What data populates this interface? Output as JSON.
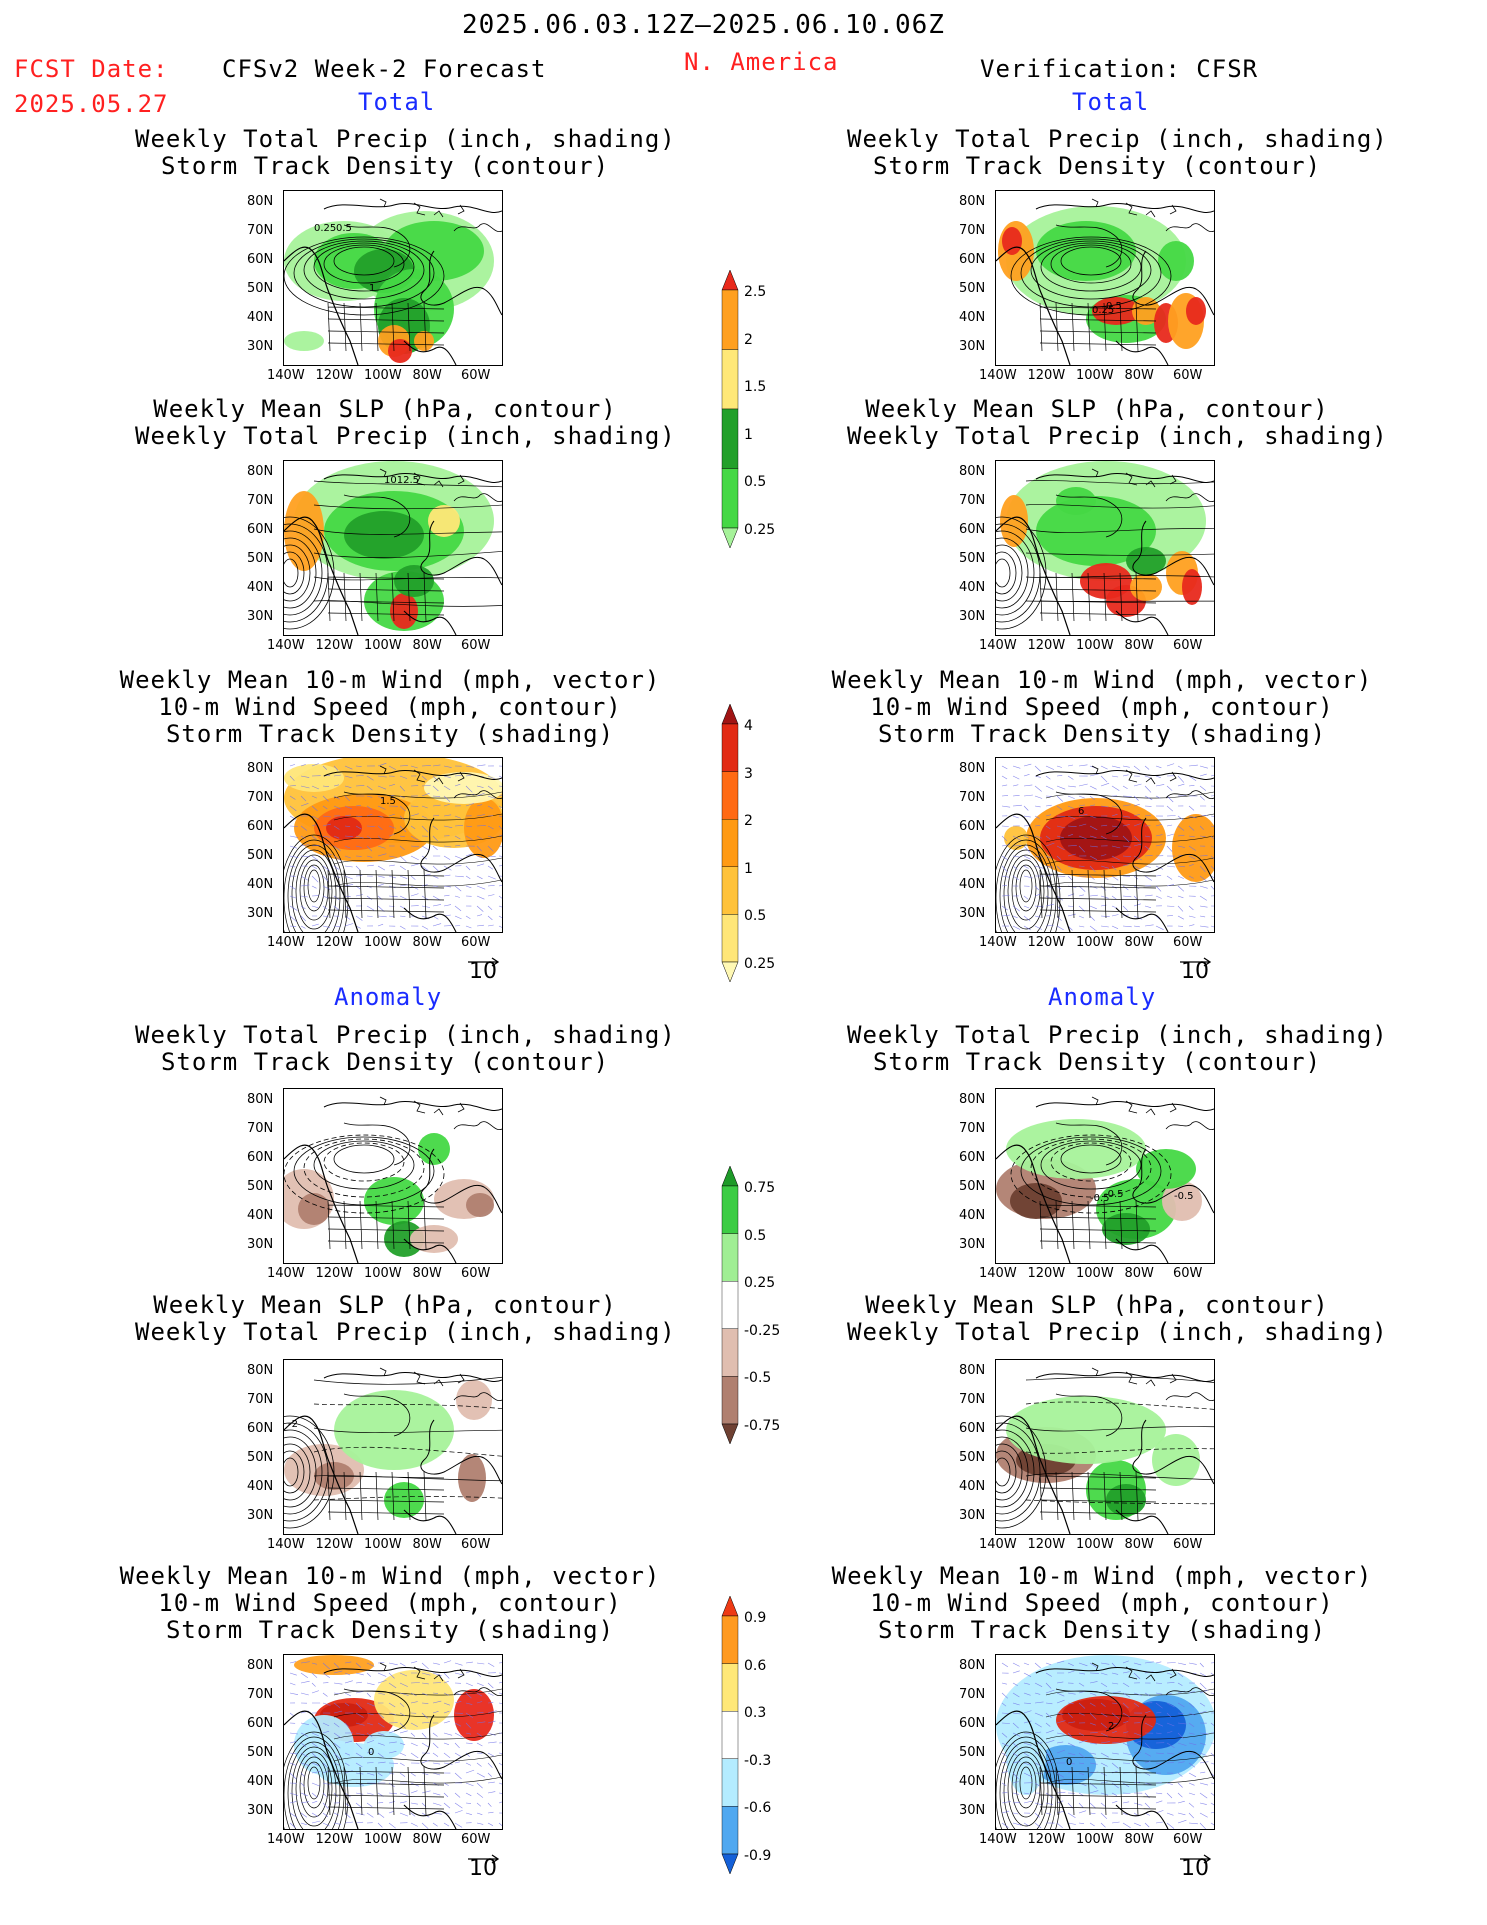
{
  "header": {
    "date_range": "2025.06.03.12Z–2025.06.10.06Z",
    "fcst_label": "FCST Date:",
    "fcst_date": "2025.05.27",
    "model": "CFSv2 Week-2 Forecast",
    "region": "N. America",
    "verification": "Verification: CFSR"
  },
  "sections": {
    "total": "Total",
    "anomaly": "Anomaly"
  },
  "titles": {
    "precip_storm_1": "Weekly Total Precip (inch, shading)",
    "precip_storm_2": "Storm Track Density (contour)",
    "slp_precip_1": "Weekly Mean SLP (hPa, contour)",
    "slp_precip_2": "Weekly Total Precip (inch, shading)",
    "wind_1": "Weekly Mean 10-m Wind (mph, vector)",
    "wind_2": "10-m Wind Speed (mph, contour)",
    "wind_3": "Storm Track Density (shading)"
  },
  "axes": {
    "lat_ticks": [
      "80N",
      "70N",
      "60N",
      "50N",
      "40N",
      "30N"
    ],
    "lon_ticks": [
      "140W",
      "120W",
      "100W",
      "80W",
      "60W"
    ]
  },
  "vector_ref": "10",
  "colorbars": [
    {
      "id": "precip_total",
      "labels": [
        "2.5",
        "2",
        "1.5",
        "1",
        "0.5",
        "0.25"
      ],
      "colors": [
        "#e8291c",
        "#ffa020",
        "#ffe878",
        "#22a02a",
        "#45d845",
        "#a6f29a"
      ]
    },
    {
      "id": "storm_total",
      "labels": [
        "4",
        "3",
        "2",
        "1",
        "0.5",
        "0.25"
      ],
      "colors": [
        "#a01414",
        "#e22a14",
        "#ff6a14",
        "#ff9a14",
        "#ffc23a",
        "#ffe678",
        "#fff8b4"
      ]
    },
    {
      "id": "precip_anom",
      "labels": [
        "0.75",
        "0.5",
        "0.25",
        "-0.25",
        "-0.5",
        "-0.75"
      ],
      "colors": [
        "#1e9a28",
        "#3ccc44",
        "#a0ee94",
        "#ffffff",
        "#e0beb0",
        "#b08070",
        "#6e4032"
      ]
    },
    {
      "id": "storm_anom",
      "labels": [
        "0.9",
        "0.6",
        "0.3",
        "-0.3",
        "-0.6",
        "-0.9"
      ],
      "colors": [
        "#ee3a14",
        "#ff9a20",
        "#ffe878",
        "#ffffff",
        "#b4ecff",
        "#50a8f0",
        "#1460d8"
      ]
    }
  ],
  "contour_labels": {
    "p1": "0.25",
    "p1b": "0.5",
    "p1c": "1",
    "p2": "1012.5",
    "p7": "0.25",
    "p7b": "1.5",
    "p9": "6",
    "p10": "0.5",
    "p10b": "0.25",
    "p11": "-2",
    "p12": "2",
    "p13": "0",
    "p16": "0",
    "p17": "-0.5",
    "p17b": "-0.5",
    "p17c": "-0.5"
  }
}
